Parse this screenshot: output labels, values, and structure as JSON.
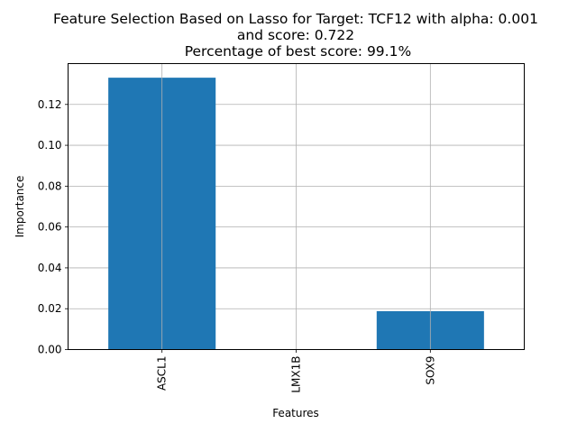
{
  "chart_data": {
    "type": "bar",
    "title_lines": [
      "Feature Selection Based on Lasso for Target: TCF12 with alpha: 0.001",
      "and score: 0.722",
      " Percentage of best score: 99.1%"
    ],
    "xlabel": "Features",
    "ylabel": "Importance",
    "categories": [
      "ASCL1",
      "LMX1B",
      "SOX9"
    ],
    "values": [
      0.1331,
      0.0,
      0.0188
    ],
    "ylim": [
      0.0,
      0.14
    ],
    "yticks": [
      "0.00",
      "0.02",
      "0.04",
      "0.06",
      "0.08",
      "0.10",
      "0.12"
    ],
    "grid": true,
    "bar_color": "#1f77b4",
    "grid_color": "#b0b0b0"
  }
}
